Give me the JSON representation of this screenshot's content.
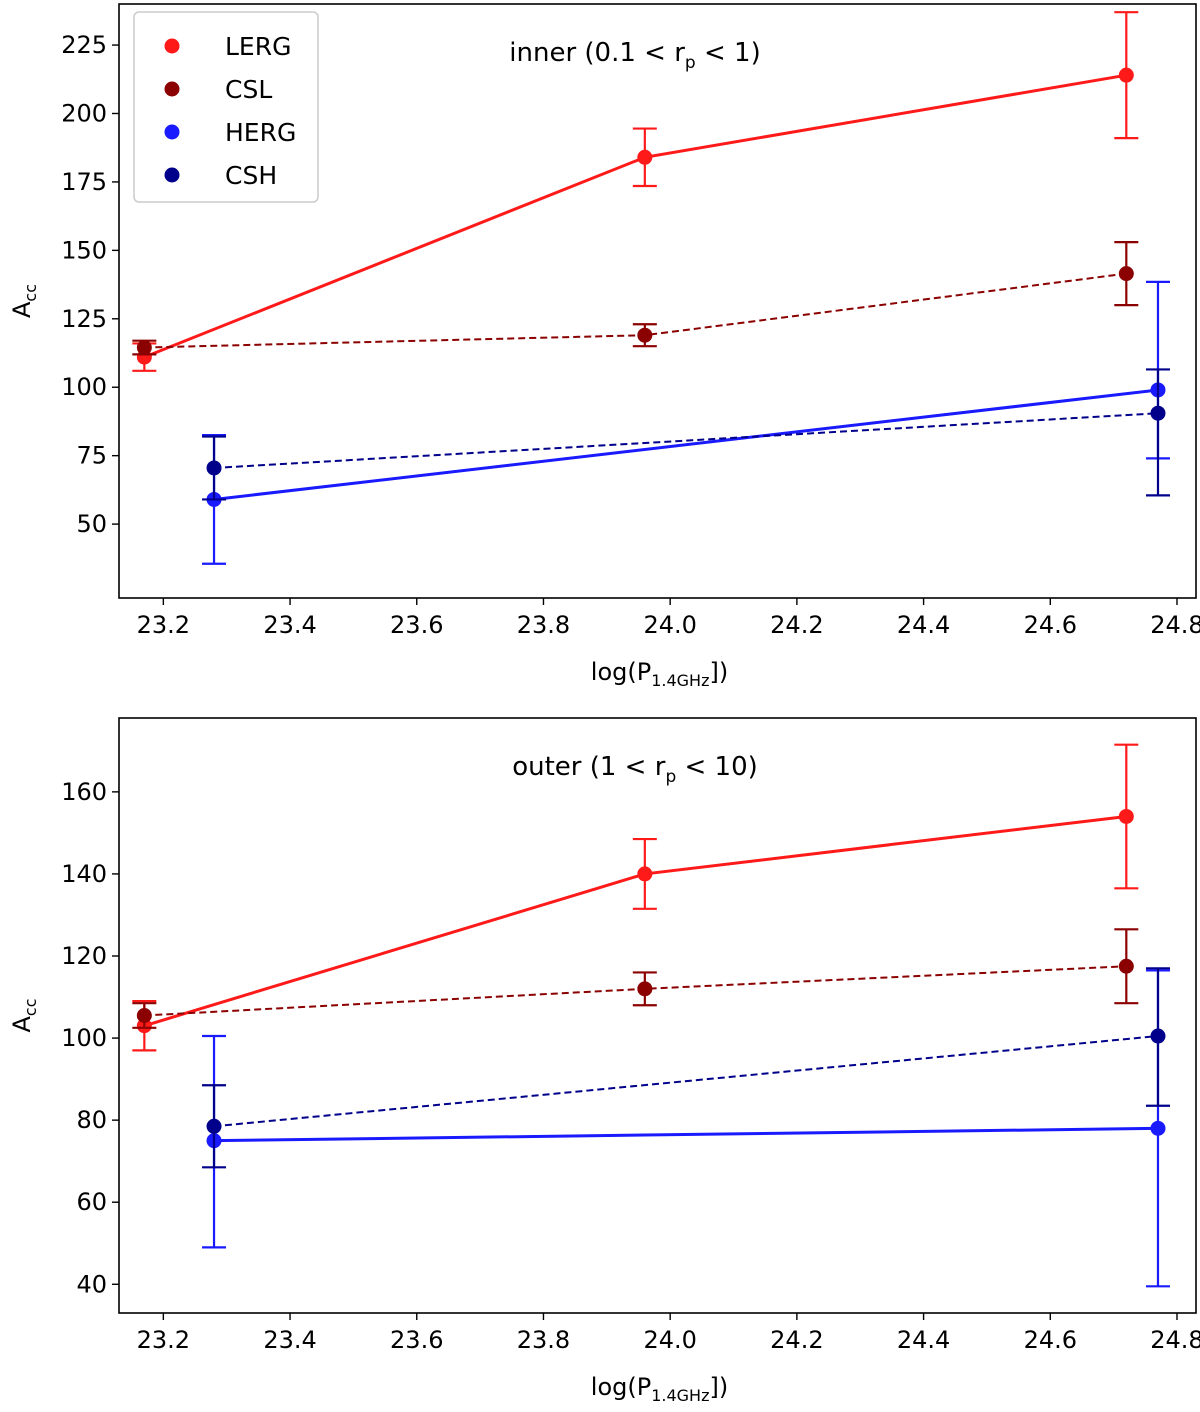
{
  "chart_data": [
    {
      "type": "scatter",
      "title": "inner (0.1 < r",
      "title_sub": "p",
      "title_end": " < 1)",
      "xlabel": "log(P",
      "xlabel_sub": "1.4GHz",
      "xlabel_end": "])",
      "ylabel": "A",
      "ylabel_sub": "cc",
      "xlim": [
        23.13,
        24.83
      ],
      "ylim": [
        23,
        240
      ],
      "xticks": [
        23.2,
        23.4,
        23.6,
        23.8,
        24.0,
        24.2,
        24.4,
        24.6,
        24.8
      ],
      "xtick_labels": [
        "23.2",
        "23.4",
        "23.6",
        "23.8",
        "24.0",
        "24.2",
        "24.4",
        "24.6",
        "24.8"
      ],
      "yticks": [
        50,
        75,
        100,
        125,
        150,
        175,
        200,
        225
      ],
      "ytick_labels": [
        "50",
        "75",
        "100",
        "125",
        "150",
        "175",
        "200",
        "225"
      ],
      "legend_position": "top-left",
      "series": [
        {
          "name": "LERG",
          "color": "#ff1a1a",
          "line": "solid",
          "x": [
            23.17,
            23.96,
            24.72
          ],
          "y": [
            111,
            184,
            214
          ],
          "err_low": [
            5,
            10.5,
            23
          ],
          "err_high": [
            5,
            10.5,
            23
          ]
        },
        {
          "name": "CSL",
          "color": "#8b0000",
          "line": "dashed",
          "x": [
            23.17,
            23.96,
            24.72
          ],
          "y": [
            114.5,
            119,
            141.5
          ],
          "err_low": [
            2.5,
            4,
            11.5
          ],
          "err_high": [
            2.5,
            4,
            11.5
          ]
        },
        {
          "name": "HERG",
          "color": "#1a1aff",
          "line": "solid",
          "x": [
            23.28,
            24.77
          ],
          "y": [
            59,
            99
          ],
          "err_low": [
            23.5,
            25
          ],
          "err_high": [
            23.5,
            39.5
          ]
        },
        {
          "name": "CSH",
          "color": "#00008b",
          "line": "dashed",
          "x": [
            23.28,
            24.77
          ],
          "y": [
            70.5,
            90.5
          ],
          "err_low": [
            11.5,
            30
          ],
          "err_high": [
            11.5,
            16
          ]
        }
      ]
    },
    {
      "type": "scatter",
      "title": "outer (1 < r",
      "title_sub": "p",
      "title_end": " < 10)",
      "xlabel": "log(P",
      "xlabel_sub": "1.4GHz",
      "xlabel_end": "])",
      "ylabel": "A",
      "ylabel_sub": "cc",
      "xlim": [
        23.13,
        24.83
      ],
      "ylim": [
        33,
        178
      ],
      "xticks": [
        23.2,
        23.4,
        23.6,
        23.8,
        24.0,
        24.2,
        24.4,
        24.6,
        24.8
      ],
      "xtick_labels": [
        "23.2",
        "23.4",
        "23.6",
        "23.8",
        "24.0",
        "24.2",
        "24.4",
        "24.6",
        "24.8"
      ],
      "yticks": [
        40,
        60,
        80,
        100,
        120,
        140,
        160
      ],
      "ytick_labels": [
        "40",
        "60",
        "80",
        "100",
        "120",
        "140",
        "160"
      ],
      "legend_position": "none",
      "series": [
        {
          "name": "LERG",
          "color": "#ff1a1a",
          "line": "solid",
          "x": [
            23.17,
            23.96,
            24.72
          ],
          "y": [
            103,
            140,
            154
          ],
          "err_low": [
            6,
            8.5,
            17.5
          ],
          "err_high": [
            6,
            8.5,
            17.5
          ]
        },
        {
          "name": "CSL",
          "color": "#8b0000",
          "line": "dashed",
          "x": [
            23.17,
            23.96,
            24.72
          ],
          "y": [
            105.5,
            112,
            117.5
          ],
          "err_low": [
            3,
            4,
            9
          ],
          "err_high": [
            3,
            4,
            9
          ]
        },
        {
          "name": "HERG",
          "color": "#1a1aff",
          "line": "solid",
          "x": [
            23.28,
            24.77
          ],
          "y": [
            75,
            78
          ],
          "err_low": [
            26,
            38.5
          ],
          "err_high": [
            25.5,
            38.5
          ]
        },
        {
          "name": "CSH",
          "color": "#00008b",
          "line": "dashed",
          "x": [
            23.28,
            24.77
          ],
          "y": [
            78.5,
            100.5
          ],
          "err_low": [
            10,
            17
          ],
          "err_high": [
            10,
            16.5
          ]
        }
      ]
    }
  ]
}
